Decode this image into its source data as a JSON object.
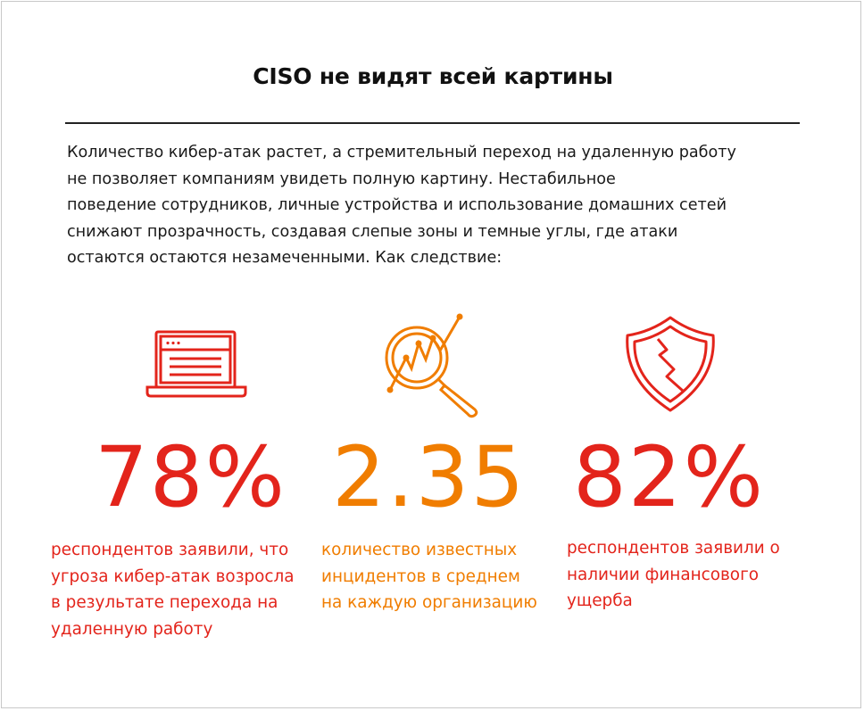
{
  "title": "CISO не видят всей картины",
  "intro_lines": [
    "Количество кибер-атак растет, а стремительный переход на удаленную работу",
    "не позволяет компаниям увидеть полную картину. Нестабильное",
    "поведение сотрудников, личные устройства и использование домашних сетей",
    "снижают прозрачность, создавая слепые зоны и темные углы, где атаки",
    "остаются остаются незамеченными. Как следствие:"
  ],
  "colors": {
    "red": "#e3241b",
    "orange": "#f07d00",
    "text": "#1a1a1a"
  },
  "stats": [
    {
      "icon": "laptop-icon",
      "value": "78%",
      "color": "#e3241b",
      "lines": [
        "респондентов заявили, что",
        "угроза кибер-атак возросла",
        "в результате перехода на",
        "удаленную работу"
      ]
    },
    {
      "icon": "magnifier-chart-icon",
      "value": "2.35",
      "color": "#f07d00",
      "lines": [
        "количество известных",
        "инцидентов в среднем",
        "на каждую организацию"
      ]
    },
    {
      "icon": "broken-shield-icon",
      "value": "82%",
      "color": "#e3241b",
      "lines": [
        "респондентов заявили о",
        "наличии финансового",
        "ущерба"
      ]
    }
  ]
}
